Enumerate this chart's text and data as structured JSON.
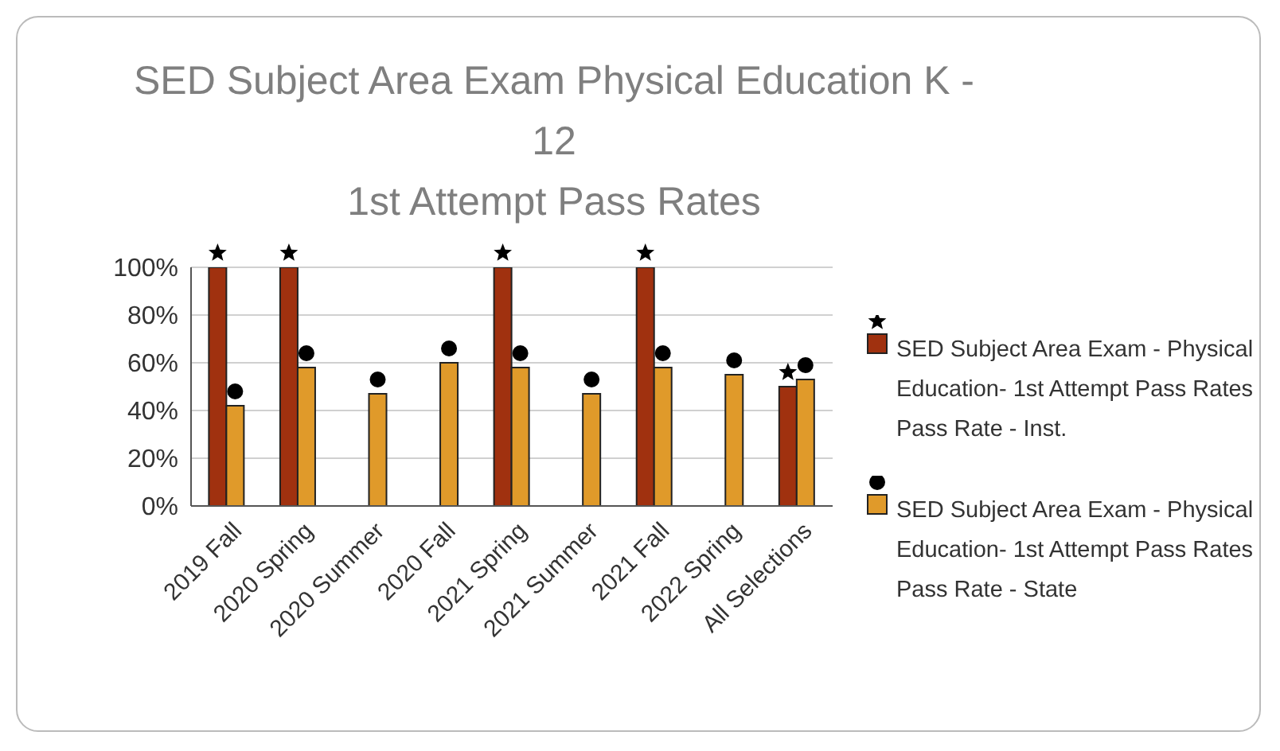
{
  "chart_data": {
    "type": "bar",
    "title": "SED Subject Area Exam Physical Education K - 12",
    "subtitle": "1st Attempt Pass Rates",
    "categories": [
      "2019 Fall",
      "2020 Spring",
      "2020 Summer",
      "2020 Fall",
      "2021 Spring",
      "2021 Summer",
      "2021 Fall",
      "2022 Spring",
      "All Selections"
    ],
    "series": [
      {
        "name": "SED Subject Area Exam - Physical Education- 1st Attempt Pass Rates Pass Rate - Inst.",
        "color": "#a0310f",
        "marker": "star",
        "values": [
          100,
          100,
          null,
          null,
          100,
          null,
          100,
          null,
          50
        ]
      },
      {
        "name": "SED Subject Area Exam - Physical Education- 1st Attempt Pass Rates Pass Rate - State",
        "color": "#e09a2a",
        "marker": "circle",
        "values": [
          42,
          58,
          47,
          60,
          58,
          47,
          58,
          55,
          53
        ]
      }
    ],
    "ylim": [
      0,
      100
    ],
    "yticks": [
      {
        "value": 0,
        "label": "0%"
      },
      {
        "value": 20,
        "label": "20%"
      },
      {
        "value": 40,
        "label": "40%"
      },
      {
        "value": 60,
        "label": "60%"
      },
      {
        "value": 80,
        "label": "80%"
      },
      {
        "value": 100,
        "label": "100%"
      }
    ],
    "grid": "y",
    "legend": "right"
  }
}
